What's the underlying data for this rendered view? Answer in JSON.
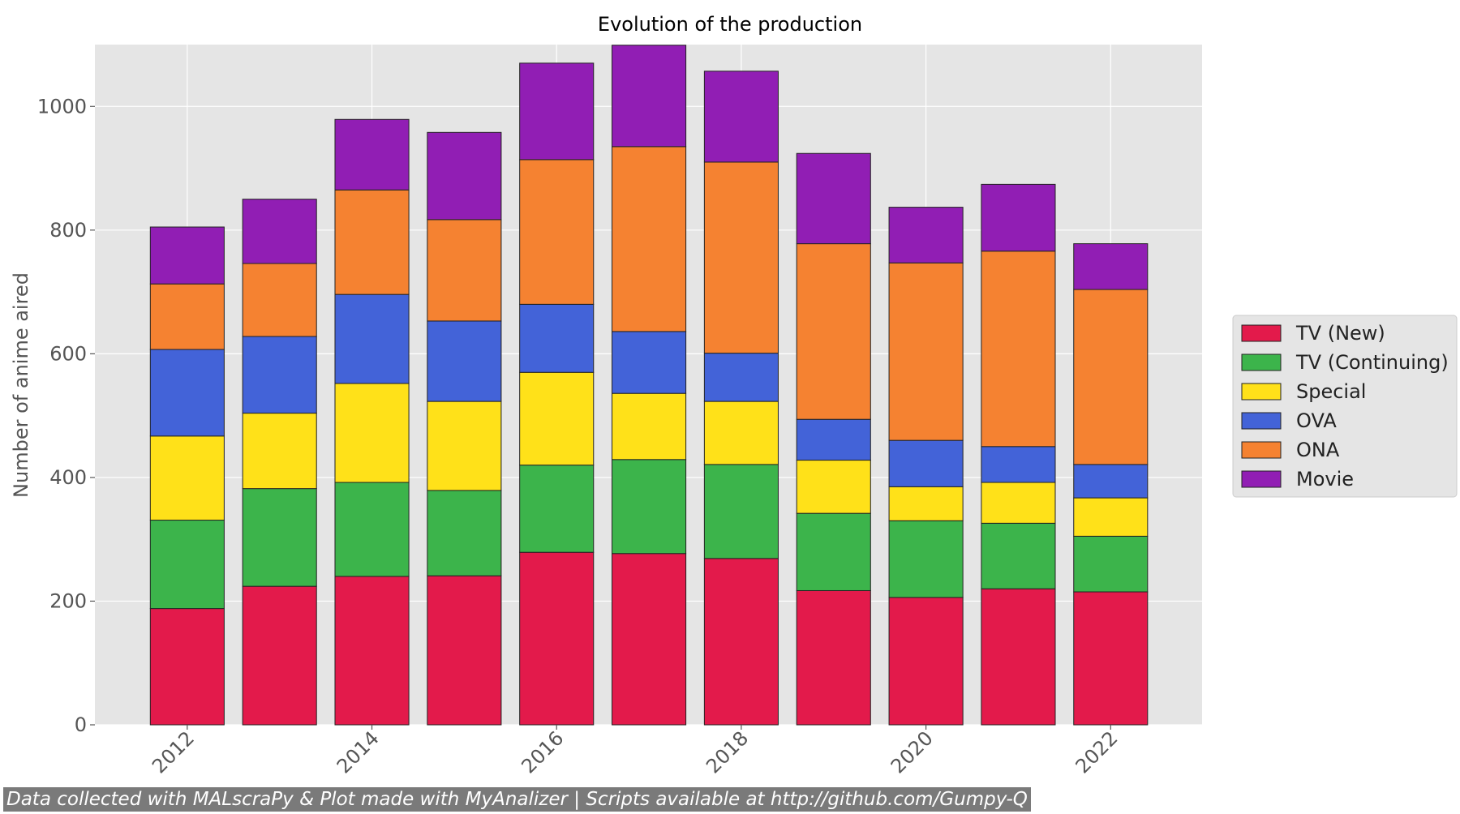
{
  "chart_data": {
    "type": "bar",
    "stacked": true,
    "title": "Evolution of the production",
    "xlabel": "",
    "ylabel": "Number of anime aired",
    "ylim": [
      0,
      1100
    ],
    "xlim": [
      2011,
      2022.99
    ],
    "yticks": [
      0,
      200,
      400,
      600,
      800,
      1000
    ],
    "xticks": [
      2012,
      2014,
      2016,
      2018,
      2020,
      2022
    ],
    "grid": true,
    "legend_position": "right",
    "categories": [
      2012,
      2013,
      2014,
      2015,
      2016,
      2017,
      2018,
      2019,
      2020,
      2021,
      2022
    ],
    "series": [
      {
        "name": "TV (New)",
        "color": "#e31a4b",
        "values": [
          188,
          224,
          240,
          241,
          279,
          277,
          269,
          217,
          206,
          220,
          215
        ]
      },
      {
        "name": "TV (Continuing)",
        "color": "#3cb44b",
        "values": [
          143,
          158,
          152,
          138,
          141,
          152,
          152,
          125,
          124,
          106,
          90
        ]
      },
      {
        "name": "Special",
        "color": "#ffe119",
        "values": [
          136,
          122,
          160,
          144,
          150,
          107,
          102,
          86,
          55,
          66,
          62
        ]
      },
      {
        "name": "OVA",
        "color": "#4363d8",
        "values": [
          140,
          124,
          144,
          130,
          110,
          100,
          78,
          66,
          75,
          58,
          54
        ]
      },
      {
        "name": "ONA",
        "color": "#f58231",
        "values": [
          106,
          118,
          169,
          164,
          234,
          299,
          309,
          284,
          287,
          316,
          283
        ]
      },
      {
        "name": "Movie",
        "color": "#911eb4",
        "values": [
          92,
          104,
          114,
          141,
          156,
          164,
          147,
          146,
          90,
          108,
          74
        ]
      }
    ]
  },
  "footer": {
    "text": "Data collected with MALscraPy & Plot made with MyAnalizer | Scripts available at http://github.com/Gumpy-Q"
  }
}
